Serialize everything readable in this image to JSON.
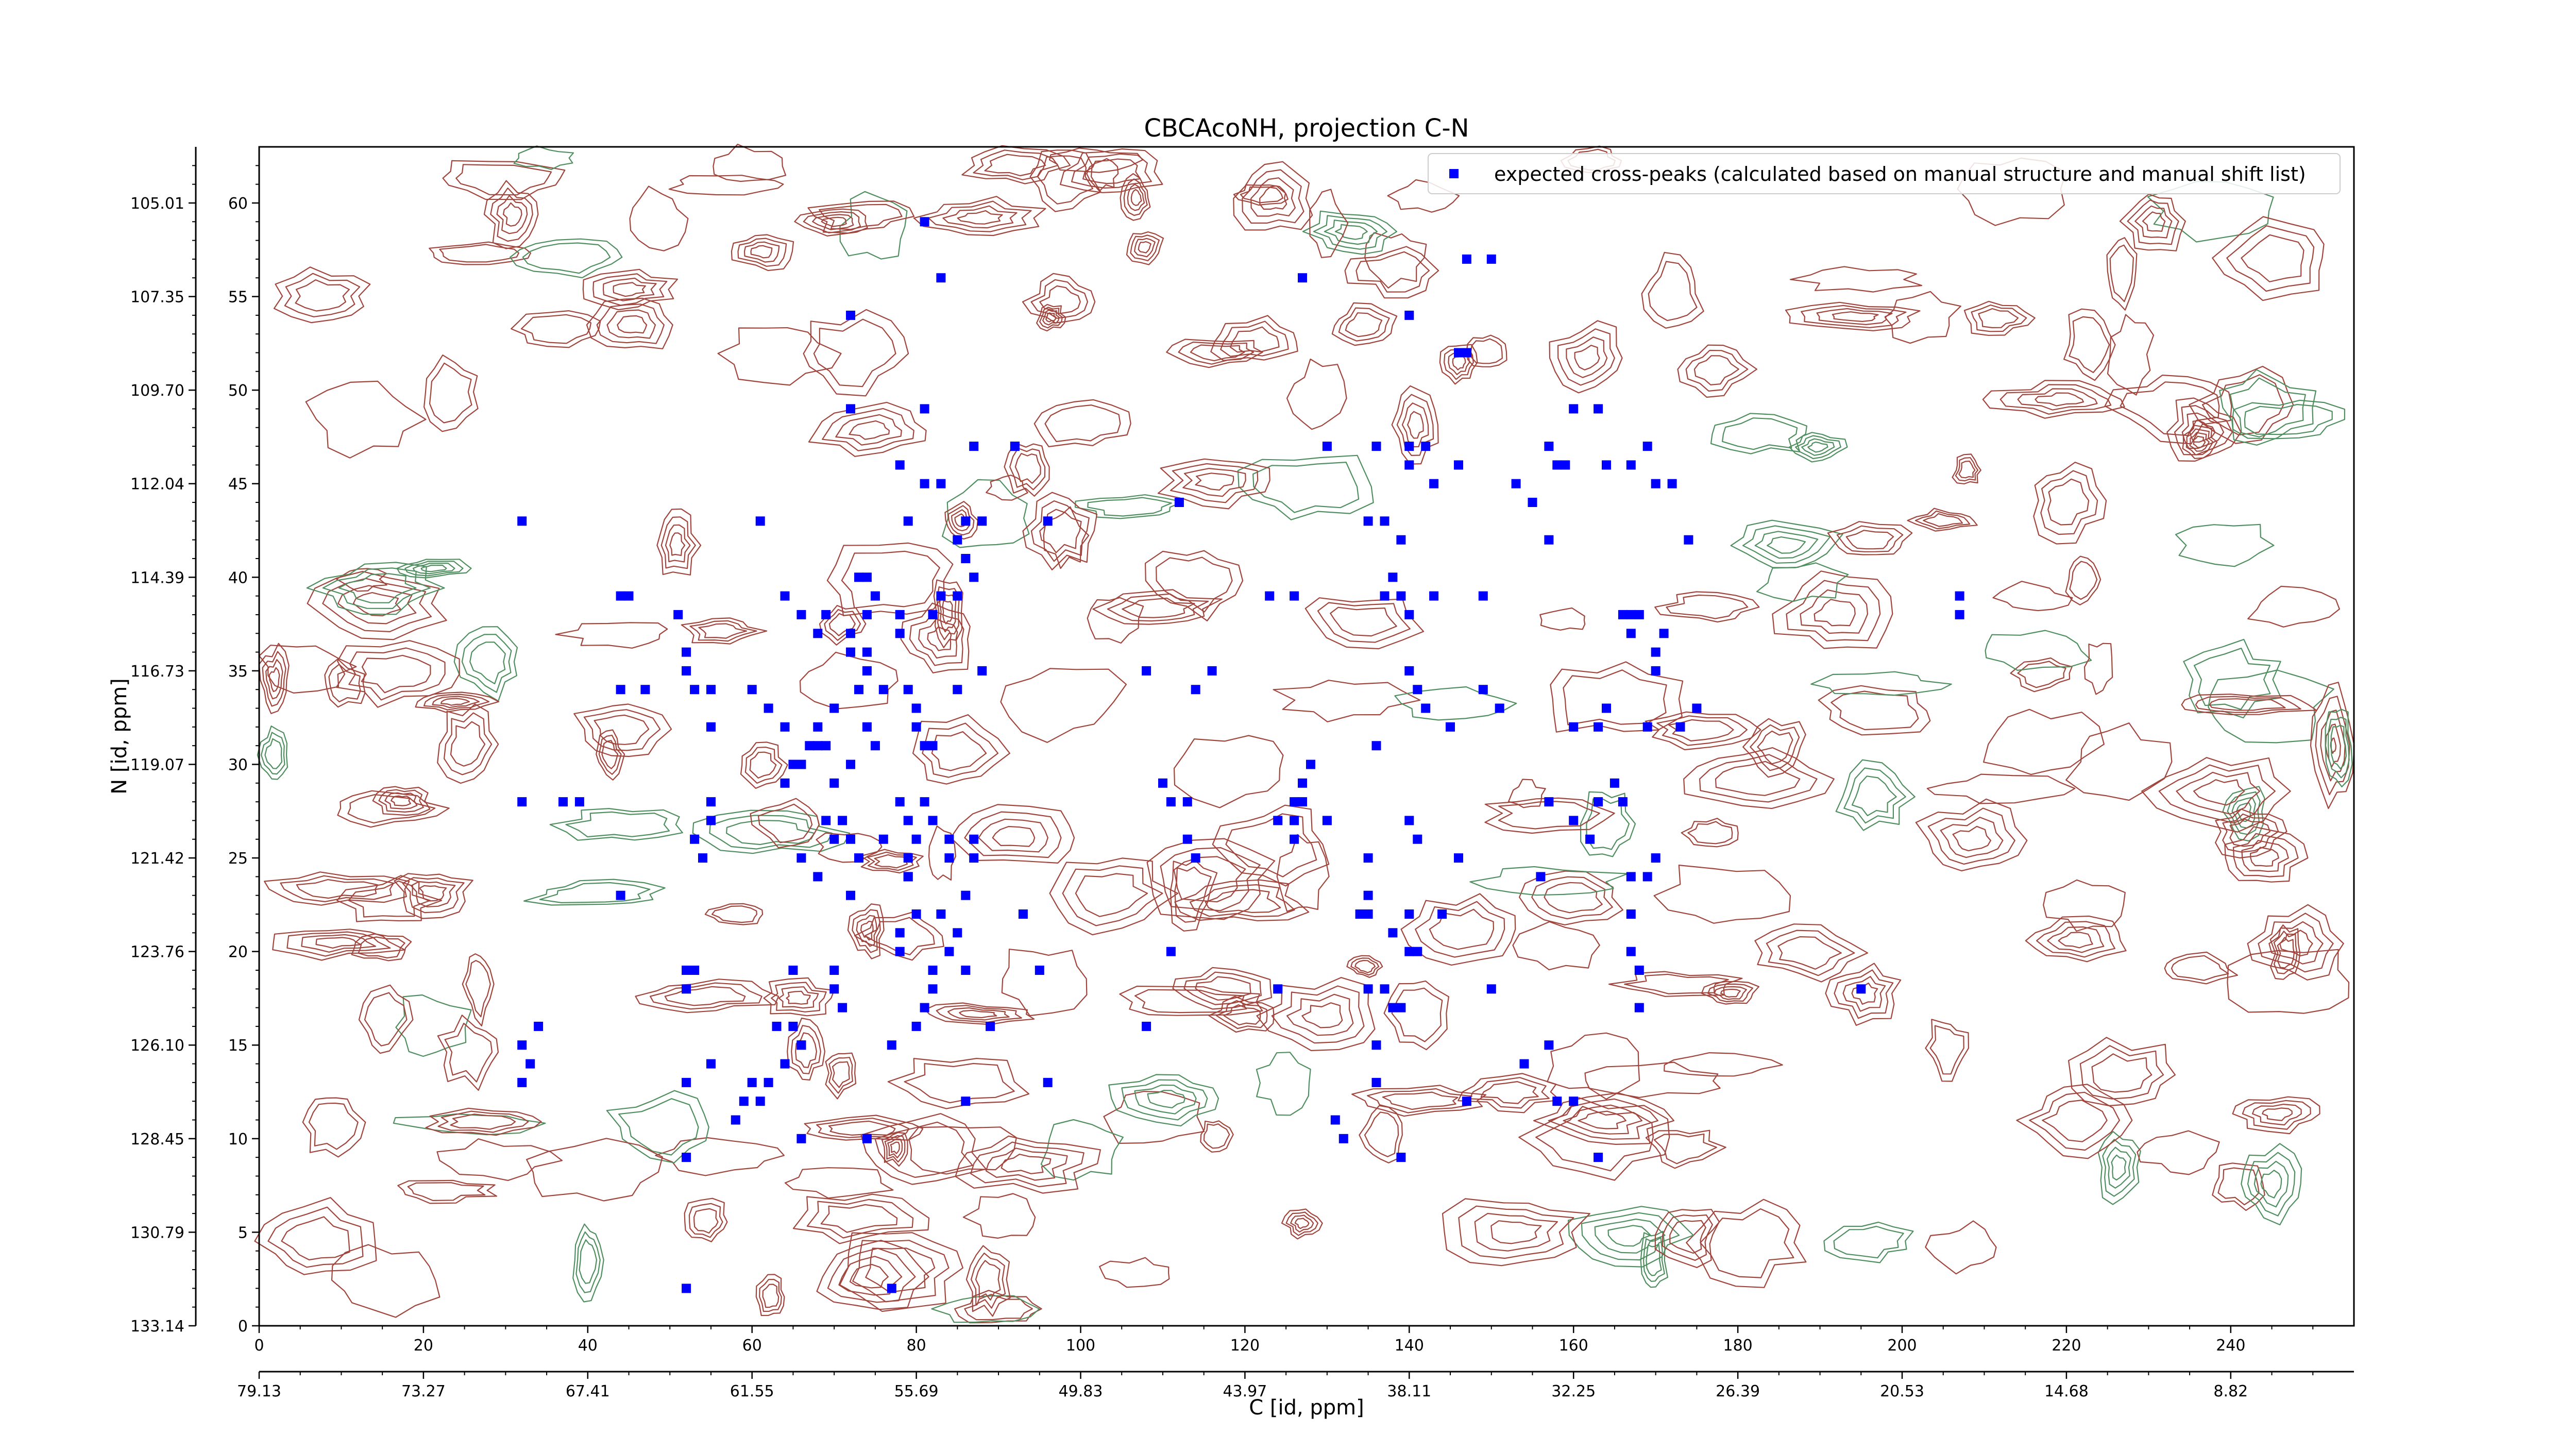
{
  "chart_data": {
    "type": "scatter",
    "title": "CBCAcoNH, projection C-N",
    "xlabel": "C [id, ppm]",
    "ylabel": "N [id, ppm]",
    "xlim": [
      0,
      255
    ],
    "ylim": [
      0,
      63
    ],
    "x_index_ticks": [
      "0",
      "20",
      "40",
      "60",
      "80",
      "100",
      "120",
      "140",
      "160",
      "180",
      "200",
      "220",
      "240"
    ],
    "x_ppm_ticks": [
      "79.13",
      "73.27",
      "67.41",
      "61.55",
      "55.69",
      "49.83",
      "43.97",
      "38.11",
      "32.25",
      "26.39",
      "20.53",
      "14.68",
      "8.82"
    ],
    "y_index_ticks": [
      "0",
      "5",
      "10",
      "15",
      "20",
      "25",
      "30",
      "35",
      "40",
      "45",
      "50",
      "55",
      "60"
    ],
    "y_ppm_ticks": [
      "133.14",
      "130.79",
      "128.45",
      "126.10",
      "123.76",
      "121.42",
      "119.07",
      "116.73",
      "114.39",
      "112.04",
      "109.70",
      "107.35",
      "105.01"
    ],
    "grid": false,
    "legend": {
      "placement": "top-right",
      "entries": [
        "expected cross-peaks (calculated based on manual structure and manual shift list)"
      ]
    },
    "colors": {
      "peaks": "#0000ff",
      "contour_positive": "#a0443c",
      "contour_negative": "#4f8f5f"
    },
    "series": [
      {
        "name": "expected cross-peaks (calculated based on manual structure and manual shift list)",
        "points": [
          [
            32,
            43
          ],
          [
            44,
            39
          ],
          [
            45,
            39
          ],
          [
            51,
            38
          ],
          [
            52,
            36
          ],
          [
            52,
            35
          ],
          [
            55,
            34
          ],
          [
            44,
            34
          ],
          [
            47,
            34
          ],
          [
            53,
            34
          ],
          [
            55,
            32
          ],
          [
            32,
            28
          ],
          [
            37,
            28
          ],
          [
            39,
            28
          ],
          [
            55,
            28
          ],
          [
            55,
            27
          ],
          [
            53,
            26
          ],
          [
            54,
            25
          ],
          [
            44,
            23
          ],
          [
            61,
            43
          ],
          [
            60,
            34
          ],
          [
            62,
            33
          ],
          [
            64,
            32
          ],
          [
            65,
            30
          ],
          [
            64,
            29
          ],
          [
            67,
            31
          ],
          [
            66,
            30
          ],
          [
            68,
            31
          ],
          [
            68,
            32
          ],
          [
            70,
            33
          ],
          [
            69,
            31
          ],
          [
            70,
            29
          ],
          [
            72,
            30
          ],
          [
            71,
            27
          ],
          [
            72,
            26
          ],
          [
            73,
            25
          ],
          [
            72,
            23
          ],
          [
            69,
            27
          ],
          [
            70,
            26
          ],
          [
            66,
            25
          ],
          [
            68,
            24
          ],
          [
            63,
            16
          ],
          [
            65,
            16
          ],
          [
            66,
            15
          ],
          [
            66,
            15
          ],
          [
            64,
            14
          ],
          [
            62,
            13
          ],
          [
            61,
            12
          ],
          [
            59,
            12
          ],
          [
            60,
            13
          ],
          [
            58,
            11
          ],
          [
            52,
            19
          ],
          [
            53,
            19
          ],
          [
            52,
            18
          ],
          [
            55,
            14
          ],
          [
            52,
            13
          ],
          [
            32,
            15
          ],
          [
            34,
            16
          ],
          [
            33,
            14
          ],
          [
            32,
            13
          ],
          [
            52,
            9
          ],
          [
            52,
            2
          ],
          [
            65,
            19
          ],
          [
            66,
            10
          ],
          [
            70,
            19
          ],
          [
            70,
            18
          ],
          [
            71,
            17
          ],
          [
            74,
            10
          ],
          [
            72,
            54
          ],
          [
            81,
            59
          ],
          [
            83,
            56
          ],
          [
            72,
            49
          ],
          [
            81,
            49
          ],
          [
            78,
            46
          ],
          [
            81,
            45
          ],
          [
            83,
            45
          ],
          [
            79,
            43
          ],
          [
            86,
            43
          ],
          [
            88,
            43
          ],
          [
            85,
            42
          ],
          [
            87,
            47
          ],
          [
            92,
            47
          ],
          [
            92,
            47
          ],
          [
            96,
            43
          ],
          [
            64,
            39
          ],
          [
            66,
            38
          ],
          [
            68,
            37
          ],
          [
            69,
            38
          ],
          [
            72,
            37
          ],
          [
            74,
            38
          ],
          [
            73,
            40
          ],
          [
            74,
            40
          ],
          [
            75,
            39
          ],
          [
            78,
            38
          ],
          [
            78,
            37
          ],
          [
            82,
            38
          ],
          [
            83,
            39
          ],
          [
            85,
            39
          ],
          [
            87,
            40
          ],
          [
            86,
            41
          ],
          [
            72,
            36
          ],
          [
            74,
            36
          ],
          [
            74,
            35
          ],
          [
            73,
            34
          ],
          [
            76,
            34
          ],
          [
            79,
            34
          ],
          [
            80,
            33
          ],
          [
            85,
            34
          ],
          [
            88,
            35
          ],
          [
            80,
            32
          ],
          [
            81,
            31
          ],
          [
            82,
            31
          ],
          [
            75,
            31
          ],
          [
            74,
            32
          ],
          [
            78,
            28
          ],
          [
            79,
            27
          ],
          [
            80,
            26
          ],
          [
            81,
            28
          ],
          [
            82,
            27
          ],
          [
            84,
            26
          ],
          [
            84,
            25
          ],
          [
            87,
            26
          ],
          [
            87,
            25
          ],
          [
            76,
            26
          ],
          [
            79,
            25
          ],
          [
            79,
            24
          ],
          [
            79,
            24
          ],
          [
            80,
            22
          ],
          [
            78,
            21
          ],
          [
            83,
            22
          ],
          [
            86,
            23
          ],
          [
            84,
            20
          ],
          [
            85,
            21
          ],
          [
            86,
            19
          ],
          [
            82,
            19
          ],
          [
            78,
            20
          ],
          [
            82,
            18
          ],
          [
            81,
            17
          ],
          [
            80,
            16
          ],
          [
            89,
            16
          ],
          [
            95,
            19
          ],
          [
            93,
            22
          ],
          [
            96,
            13
          ],
          [
            77,
            15
          ],
          [
            86,
            12
          ],
          [
            77,
            2
          ],
          [
            112,
            44
          ],
          [
            127,
            56
          ],
          [
            130,
            47
          ],
          [
            136,
            47
          ],
          [
            137,
            43
          ],
          [
            139,
            42
          ],
          [
            140,
            54
          ],
          [
            140,
            46
          ],
          [
            140,
            47
          ],
          [
            142,
            47
          ],
          [
            143,
            45
          ],
          [
            146,
            46
          ],
          [
            146,
            52
          ],
          [
            147,
            52
          ],
          [
            147,
            57
          ],
          [
            150,
            57
          ],
          [
            153,
            45
          ],
          [
            155,
            44
          ],
          [
            158,
            46
          ],
          [
            157,
            47
          ],
          [
            159,
            46
          ],
          [
            160,
            49
          ],
          [
            163,
            49
          ],
          [
            164,
            46
          ],
          [
            167,
            46
          ],
          [
            169,
            47
          ],
          [
            170,
            45
          ],
          [
            172,
            45
          ],
          [
            174,
            42
          ],
          [
            108,
            35
          ],
          [
            114,
            34
          ],
          [
            116,
            35
          ],
          [
            123,
            39
          ],
          [
            126,
            39
          ],
          [
            135,
            43
          ],
          [
            138,
            40
          ],
          [
            137,
            39
          ],
          [
            139,
            39
          ],
          [
            143,
            39
          ],
          [
            149,
            39
          ],
          [
            140,
            38
          ],
          [
            140,
            35
          ],
          [
            141,
            34
          ],
          [
            142,
            33
          ],
          [
            145,
            32
          ],
          [
            151,
            33
          ],
          [
            157,
            42
          ],
          [
            160,
            32
          ],
          [
            163,
            32
          ],
          [
            164,
            33
          ],
          [
            166,
            38
          ],
          [
            167,
            38
          ],
          [
            167,
            37
          ],
          [
            168,
            38
          ],
          [
            170,
            36
          ],
          [
            171,
            37
          ],
          [
            170,
            35
          ],
          [
            173,
            32
          ],
          [
            175,
            33
          ],
          [
            169,
            32
          ],
          [
            207,
            39
          ],
          [
            207,
            38
          ],
          [
            110,
            29
          ],
          [
            111,
            28
          ],
          [
            113,
            28
          ],
          [
            113,
            26
          ],
          [
            114,
            25
          ],
          [
            124,
            27
          ],
          [
            126,
            26
          ],
          [
            126,
            27
          ],
          [
            126,
            28
          ],
          [
            127,
            28
          ],
          [
            127,
            29
          ],
          [
            128,
            30
          ],
          [
            130,
            27
          ],
          [
            135,
            25
          ],
          [
            135,
            23
          ],
          [
            135,
            22
          ],
          [
            134,
            22
          ],
          [
            136,
            31
          ],
          [
            138,
            21
          ],
          [
            138,
            17
          ],
          [
            140,
            27
          ],
          [
            141,
            26
          ],
          [
            146,
            25
          ],
          [
            149,
            34
          ],
          [
            156,
            24
          ],
          [
            157,
            28
          ],
          [
            160,
            27
          ],
          [
            162,
            26
          ],
          [
            163,
            28
          ],
          [
            165,
            29
          ],
          [
            166,
            28
          ],
          [
            170,
            25
          ],
          [
            169,
            24
          ],
          [
            167,
            24
          ],
          [
            167,
            22
          ],
          [
            167,
            20
          ],
          [
            168,
            19
          ],
          [
            168,
            17
          ],
          [
            111,
            20
          ],
          [
            124,
            18
          ],
          [
            135,
            18
          ],
          [
            137,
            18
          ],
          [
            139,
            17
          ],
          [
            140,
            20
          ],
          [
            141,
            20
          ],
          [
            144,
            22
          ],
          [
            140,
            22
          ],
          [
            108,
            16
          ],
          [
            131,
            11
          ],
          [
            132,
            10
          ],
          [
            136,
            13
          ],
          [
            136,
            15
          ],
          [
            139,
            9
          ],
          [
            147,
            12
          ],
          [
            150,
            18
          ],
          [
            154,
            14
          ],
          [
            157,
            15
          ],
          [
            158,
            12
          ],
          [
            160,
            12
          ],
          [
            163,
            9
          ],
          [
            195,
            18
          ]
        ]
      }
    ]
  }
}
